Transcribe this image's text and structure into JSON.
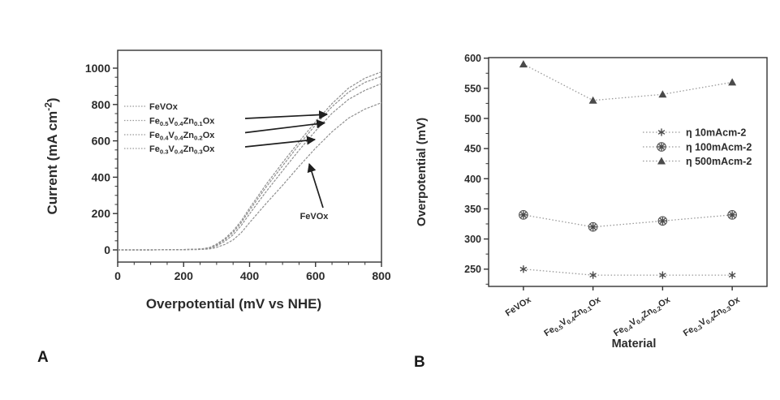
{
  "figure": {
    "panel_a_label": "A",
    "panel_b_label": "B"
  },
  "colors": {
    "ink": "#2b2b2b",
    "axis": "#333333",
    "curve": "#8f8f8f",
    "dotted": "#999999",
    "marker": "#4a4a4a",
    "arrow": "#1f1f1f"
  },
  "chart_data": [
    {
      "type": "line",
      "panel": "A",
      "xlabel": "Overpotential (mV vs NHE)",
      "ylabel": "Current (mA cm-2)",
      "ylabel_rich": "Current (mA cm^{-2})",
      "xlim": [
        0,
        800
      ],
      "ylim": [
        -70,
        1100
      ],
      "xticks": [
        0,
        200,
        400,
        600,
        800
      ],
      "yticks": [
        0,
        200,
        400,
        600,
        800,
        1000
      ],
      "grid": false,
      "legend_position": "upper-left-inside",
      "x": [
        0,
        100,
        200,
        240,
        260,
        280,
        300,
        325,
        350,
        375,
        400,
        450,
        500,
        550,
        600,
        650,
        700,
        750,
        800
      ],
      "series": [
        {
          "name": "FeVOx",
          "rich": "FeVOx",
          "values": [
            0,
            0,
            1,
            2,
            3,
            6,
            14,
            30,
            55,
            95,
            150,
            255,
            355,
            460,
            560,
            650,
            725,
            775,
            810
          ]
        },
        {
          "name": "Fe0.5V0.4Zn0.1Ox",
          "rich": "Fe_{0.5}V_{0.4}Zn_{0.1}Ox",
          "values": [
            0,
            0,
            2,
            4,
            7,
            14,
            32,
            62,
            105,
            160,
            230,
            360,
            480,
            595,
            705,
            805,
            890,
            945,
            980
          ]
        },
        {
          "name": "Fe0.4V0.4Zn0.2Ox",
          "rich": "Fe_{0.4}V_{0.4}Zn_{0.2}Ox",
          "values": [
            0,
            0,
            2,
            4,
            6,
            12,
            28,
            56,
            96,
            150,
            218,
            345,
            462,
            578,
            688,
            788,
            868,
            922,
            955
          ]
        },
        {
          "name": "Fe0.3V0.4Zn0.3Ox",
          "rich": "Fe_{0.3}V_{0.4}Zn_{0.3}Ox",
          "values": [
            0,
            0,
            2,
            3,
            5,
            10,
            23,
            47,
            83,
            135,
            198,
            320,
            435,
            548,
            655,
            752,
            828,
            878,
            915
          ]
        }
      ],
      "annotation": {
        "text": "FeVOx"
      }
    },
    {
      "type": "line",
      "panel": "B",
      "xlabel": "Material",
      "ylabel": "Overpotential (mV)",
      "ylim": [
        220,
        610
      ],
      "yticks": [
        250,
        300,
        350,
        400,
        450,
        500,
        550,
        600
      ],
      "grid": false,
      "legend_position": "center-right-inside",
      "categories": [
        "FeVOx",
        "Fe0.5V0.4Zn0.1Ox",
        "Fe0.4V0.4Zn0.2Ox",
        "Fe0.3V0.4Zn0.3Ox"
      ],
      "categories_rich": [
        "FeVOx",
        "Fe_{0.5}V_{0.4}Zn_{0.1}Ox",
        "Fe_{0.4}V_{0.4}Zn_{0.2}Ox",
        "Fe_{0.3}V_{0.4}Zn_{0.3}Ox"
      ],
      "series": [
        {
          "name": "η 10mAcm-2",
          "marker": "star",
          "values": [
            250,
            240,
            240,
            240
          ]
        },
        {
          "name": "η 100mAcm-2",
          "marker": "circle-star",
          "values": [
            340,
            320,
            330,
            340
          ]
        },
        {
          "name": "η 500mAcm-2",
          "marker": "triangle",
          "values": [
            590,
            530,
            540,
            560
          ]
        }
      ]
    }
  ]
}
